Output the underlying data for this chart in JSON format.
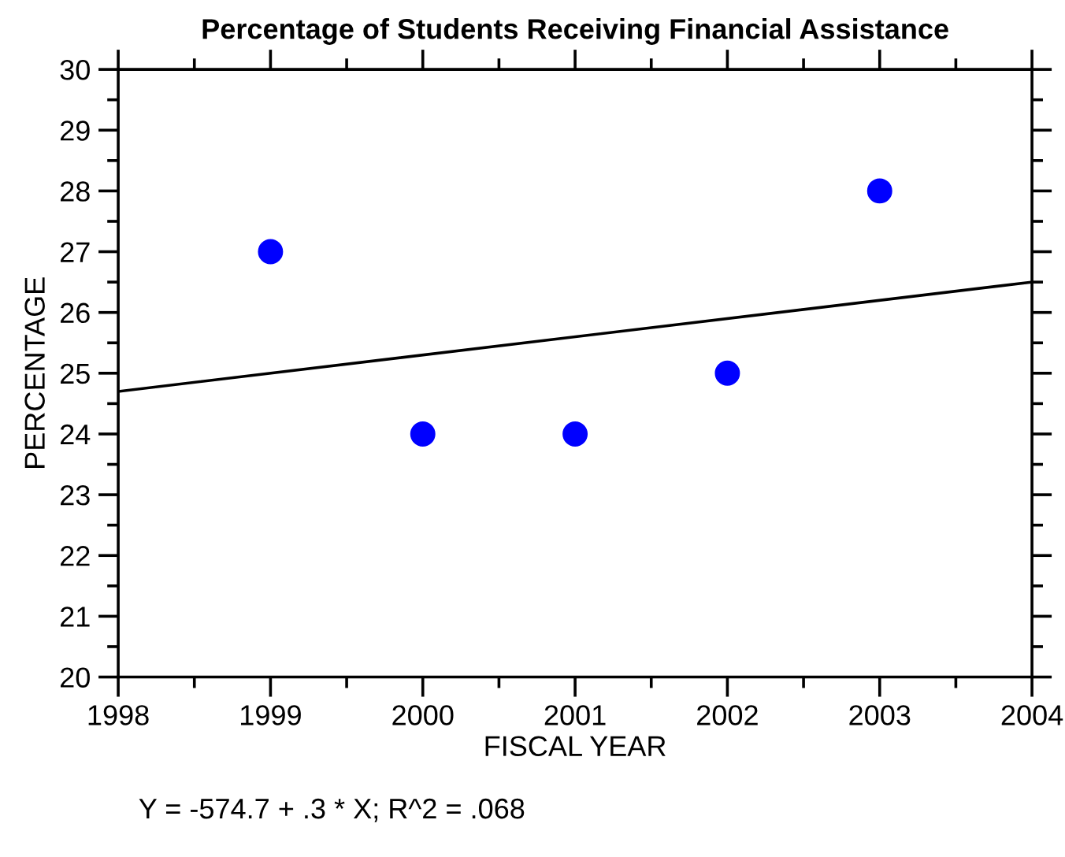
{
  "chart_data": {
    "type": "scatter",
    "title": "Percentage of Students Receiving Financial Assistance",
    "xlabel": "FISCAL YEAR",
    "ylabel": "PERCENTAGE",
    "x": [
      1999,
      2000,
      2001,
      2002,
      2003
    ],
    "series": [
      {
        "color": "#0000ff",
        "values": [
          27,
          24,
          24,
          25,
          28
        ],
        "marker": "circle"
      },
      {
        "type": "line",
        "color": "#000000",
        "x": [
          1998,
          2004
        ],
        "values": [
          24.7,
          26.5
        ],
        "marker": "none",
        "line_style": "solid"
      }
    ],
    "xlim": [
      1998,
      2004
    ],
    "xticks": [
      1998,
      1999,
      2000,
      2001,
      2002,
      2003,
      2004
    ],
    "ylim": [
      20,
      30
    ],
    "yticks": [
      20,
      21,
      22,
      23,
      24,
      25,
      26,
      27,
      28,
      29,
      30
    ],
    "grid": false,
    "annotations": [
      "Y = -574.7 + .3 * X; R^2 = .068"
    ]
  }
}
